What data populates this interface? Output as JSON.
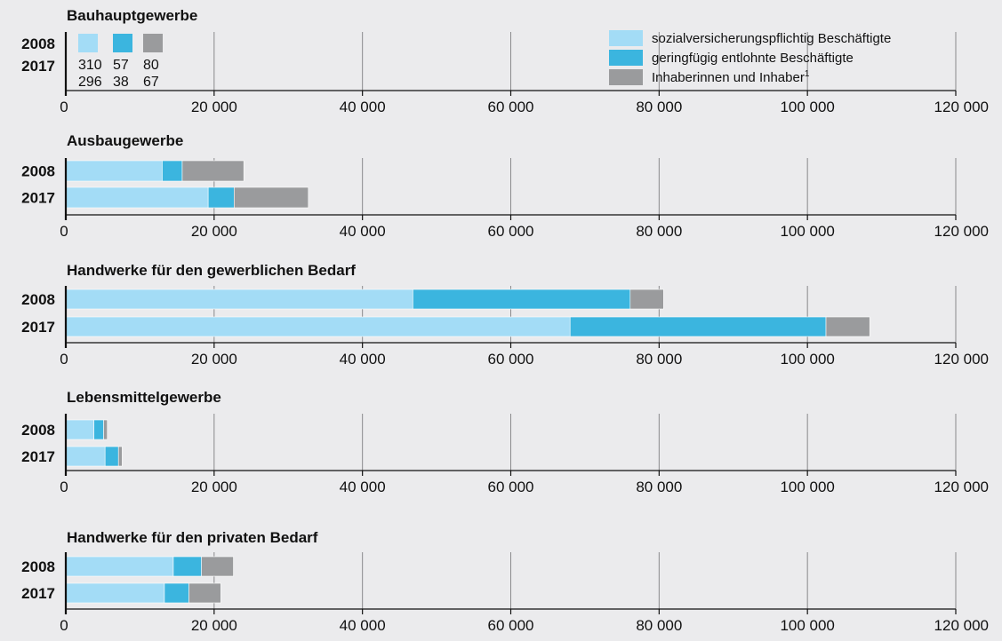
{
  "chart_data": {
    "type": "bar",
    "orientation": "horizontal",
    "stacked": true,
    "grid": true,
    "legend_position": "top-right",
    "xlim": [
      0,
      120000
    ],
    "x_ticks": [
      "0",
      "20 000",
      "40 000",
      "60 000",
      "80 000",
      "100 000",
      "120 000"
    ],
    "x_tick_values": [
      0,
      20000,
      40000,
      60000,
      80000,
      100000,
      120000
    ],
    "colors": [
      "#a3dcf6",
      "#3bb5df",
      "#9a9b9d"
    ],
    "legend": [
      {
        "label": "sozialversicherungspflichtig Beschäftigte",
        "color": "#a3dcf6"
      },
      {
        "label": "geringfügig entlohnte Beschäftigte",
        "color": "#3bb5df"
      },
      {
        "label": "Inhaberinnen und Inhaber",
        "sup": "1",
        "color": "#9a9b9d"
      }
    ],
    "panels": [
      {
        "title": "Bauhauptgewerbe",
        "inline_labels": true,
        "rows": [
          {
            "year": "2008",
            "values": [
              310,
              57,
              80
            ]
          },
          {
            "year": "2017",
            "values": [
              296,
              38,
              67
            ]
          }
        ]
      },
      {
        "title": "Ausbaugewerbe",
        "rows": [
          {
            "year": "2008",
            "values": [
              13000,
              2700,
              8300
            ]
          },
          {
            "year": "2017",
            "values": [
              19200,
              3500,
              10000
            ]
          }
        ]
      },
      {
        "title": "Handwerke für den gewerblichen Bedarf",
        "rows": [
          {
            "year": "2008",
            "values": [
              46800,
              29300,
              4500
            ]
          },
          {
            "year": "2017",
            "values": [
              68000,
              34500,
              5900
            ]
          }
        ]
      },
      {
        "title": "Lebensmittelgewerbe",
        "rows": [
          {
            "year": "2008",
            "values": [
              3800,
              1300,
              500
            ]
          },
          {
            "year": "2017",
            "values": [
              5300,
              1800,
              500
            ]
          }
        ]
      },
      {
        "title": "Handwerke für den privaten Bedarf",
        "rows": [
          {
            "year": "2008",
            "values": [
              14500,
              3800,
              4300
            ]
          },
          {
            "year": "2017",
            "values": [
              13300,
              3300,
              4300
            ]
          }
        ]
      }
    ]
  }
}
